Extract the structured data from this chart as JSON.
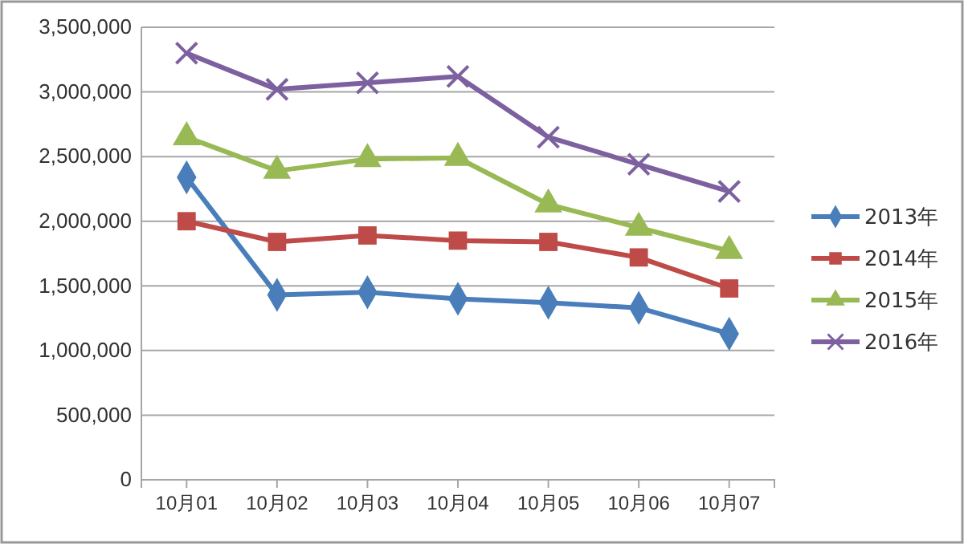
{
  "chart_data": {
    "type": "line",
    "categories": [
      "10月01",
      "10月02",
      "10月03",
      "10月04",
      "10月05",
      "10月06",
      "10月07"
    ],
    "series": [
      {
        "name": "2013年",
        "color": "#4a7ebb",
        "marker": "diamond",
        "values": [
          2340000,
          1430000,
          1450000,
          1400000,
          1370000,
          1330000,
          1130000
        ]
      },
      {
        "name": "2014年",
        "color": "#be4b48",
        "marker": "square",
        "values": [
          2000000,
          1840000,
          1890000,
          1850000,
          1840000,
          1720000,
          1480000
        ]
      },
      {
        "name": "2015年",
        "color": "#98b954",
        "marker": "triangle",
        "values": [
          2650000,
          2390000,
          2480000,
          2490000,
          2130000,
          1950000,
          1770000
        ]
      },
      {
        "name": "2016年",
        "color": "#7d60a0",
        "marker": "cross",
        "values": [
          3300000,
          3020000,
          3070000,
          3120000,
          2650000,
          2440000,
          2230000
        ]
      }
    ],
    "ylim": [
      0,
      3500000
    ],
    "yticks": [
      0,
      {
        "value": 500000,
        "label": "500,000"
      },
      {
        "value": 1000000,
        "label": "1,000,000"
      },
      {
        "value": 1500000,
        "label": "1,500,000"
      },
      {
        "value": 2000000,
        "label": "2,000,000"
      },
      {
        "value": 2500000,
        "label": "2,500,000"
      },
      {
        "value": 3000000,
        "label": "3,000,000"
      },
      {
        "value": 3500000,
        "label": "3,500,000"
      }
    ],
    "grid": "y",
    "legend": "right",
    "line_style": "solid"
  }
}
